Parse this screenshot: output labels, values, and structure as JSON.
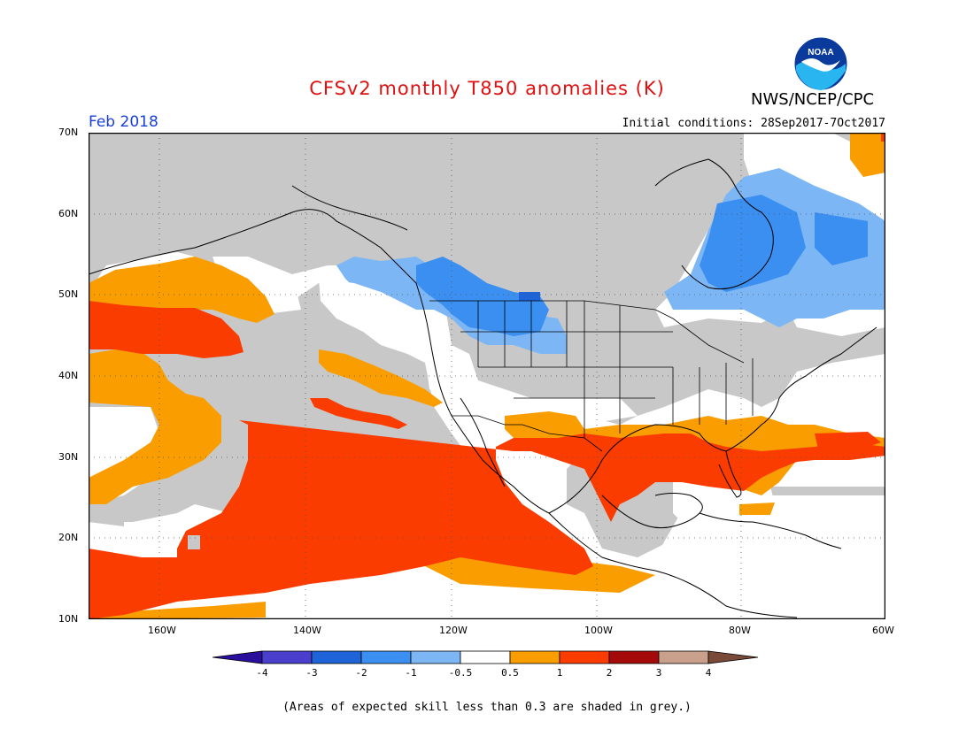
{
  "title": "CFSv2 monthly T850 anomalies (K)",
  "agency": "NWS/NCEP/CPC",
  "logo_text": "NOAA",
  "period": "Feb 2018",
  "initial_conditions": "Initial conditions: 28Sep2017-7Oct2017",
  "footnote": "(Areas of expected skill less than 0.3 are shaded in grey.)",
  "lat_labels": [
    "70N",
    "60N",
    "50N",
    "40N",
    "30N",
    "20N",
    "10N"
  ],
  "lon_labels": [
    "160W",
    "140W",
    "120W",
    "100W",
    "80W",
    "60W"
  ],
  "colorbar": {
    "labels": [
      "-4",
      "-3",
      "-2",
      "-1",
      "-0.5",
      "0.5",
      "1",
      "2",
      "3",
      "4"
    ],
    "colors": [
      "#2a0e9c",
      "#4a3fcc",
      "#1f63d8",
      "#3a8ff0",
      "#7cb6f5",
      "#ffffff",
      "#fa9d00",
      "#fa3c00",
      "#a50a0a",
      "#c8a08c",
      "#7a4a38"
    ]
  },
  "colors": {
    "skill_grey": "#c8c8c8",
    "title_red": "#e01010",
    "period_blue": "#1a3fd8"
  }
}
